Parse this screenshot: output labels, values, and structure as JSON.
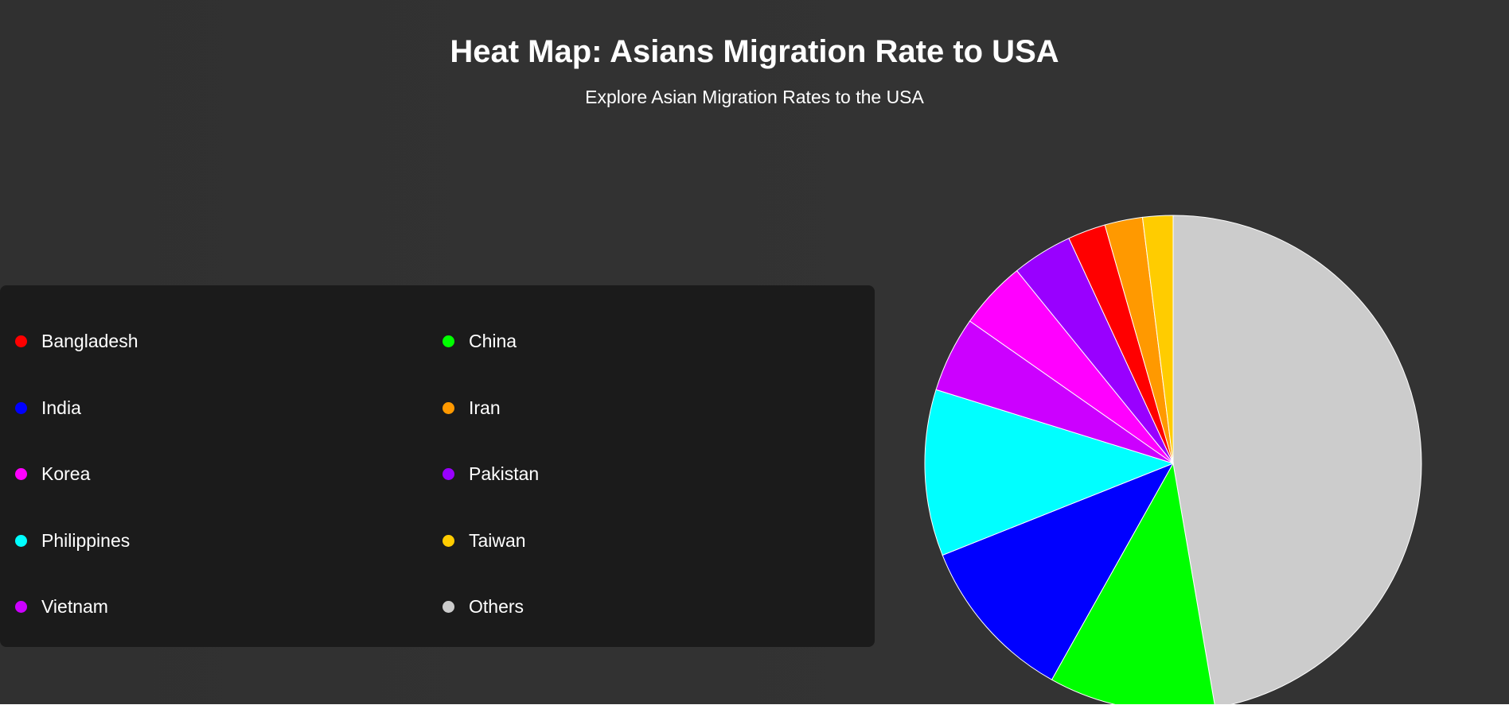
{
  "header": {
    "title": "Heat Map: Asians Migration Rate to USA",
    "subtitle": "Explore Asian Migration Rates to the USA"
  },
  "legend": {
    "items": [
      {
        "label": "Bangladesh",
        "color": "#ff0000"
      },
      {
        "label": "China",
        "color": "#00ff00"
      },
      {
        "label": "India",
        "color": "#0000ff"
      },
      {
        "label": "Iran",
        "color": "#ff9900"
      },
      {
        "label": "Korea",
        "color": "#ff00ff"
      },
      {
        "label": "Pakistan",
        "color": "#9900ff"
      },
      {
        "label": "Philippines",
        "color": "#00ffff"
      },
      {
        "label": "Taiwan",
        "color": "#ffcc00"
      },
      {
        "label": "Vietnam",
        "color": "#cc00ff"
      },
      {
        "label": "Others",
        "color": "#cccccc"
      }
    ]
  },
  "chart_data": {
    "type": "pie",
    "title": "Heat Map: Asians Migration Rate to USA",
    "subtitle": "Explore Asian Migration Rates to the USA",
    "legend_position": "left",
    "start": "top",
    "direction": "clockwise",
    "slices": [
      {
        "label": "Others",
        "value": 48.0,
        "color": "#cccccc"
      },
      {
        "label": "China",
        "value": 11.0,
        "color": "#00ff00"
      },
      {
        "label": "India",
        "value": 11.0,
        "color": "#0000ff"
      },
      {
        "label": "Philippines",
        "value": 11.0,
        "color": "#00ffff"
      },
      {
        "label": "Vietnam",
        "value": 5.0,
        "color": "#cc00ff"
      },
      {
        "label": "Korea",
        "value": 4.5,
        "color": "#ff00ff"
      },
      {
        "label": "Pakistan",
        "value": 4.0,
        "color": "#9900ff"
      },
      {
        "label": "Bangladesh",
        "value": 2.5,
        "color": "#ff0000"
      },
      {
        "label": "Iran",
        "value": 2.5,
        "color": "#ff9900"
      },
      {
        "label": "Taiwan",
        "value": 2.0,
        "color": "#ffcc00"
      }
    ]
  }
}
